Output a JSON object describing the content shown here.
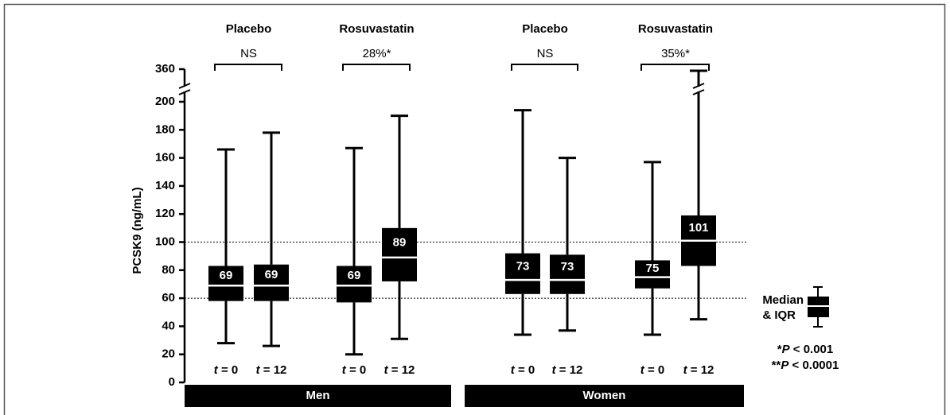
{
  "chart_data": {
    "type": "box",
    "y_label": "PCSK9 (ng/mL)",
    "ylim": [
      0,
      360
    ],
    "yticks": [
      0,
      20,
      40,
      60,
      80,
      100,
      120,
      140,
      160,
      180,
      200,
      360
    ],
    "axis_break": true,
    "hlines": [
      100,
      60
    ],
    "color": "#000000",
    "sexes": [
      "Men",
      "Women"
    ],
    "treatments": [
      {
        "label": "Placebo",
        "comparison": "NS"
      },
      {
        "label": "Rosuvastatin",
        "comparison": "28%*"
      },
      {
        "label": "Placebo",
        "comparison": "NS"
      },
      {
        "label": "Rosuvastatin",
        "comparison": "35%*"
      }
    ],
    "boxes": [
      {
        "label": "t = 0",
        "whisker_low": 28,
        "q1": 58,
        "median": 69,
        "q3": 83,
        "whisker_high": 166
      },
      {
        "label": "t = 12",
        "whisker_low": 26,
        "q1": 58,
        "median": 69,
        "q3": 84,
        "whisker_high": 178
      },
      {
        "label": "t = 0",
        "whisker_low": 20,
        "q1": 57,
        "median": 69,
        "q3": 83,
        "whisker_high": 167
      },
      {
        "label": "t = 12",
        "whisker_low": 31,
        "q1": 72,
        "median": 89,
        "q3": 110,
        "whisker_high": 190
      },
      {
        "label": "t = 0",
        "whisker_low": 34,
        "q1": 63,
        "median": 73,
        "q3": 92,
        "whisker_high": 194
      },
      {
        "label": "t = 12",
        "whisker_low": 37,
        "q1": 63,
        "median": 73,
        "q3": 91,
        "whisker_high": 160
      },
      {
        "label": "t = 0",
        "whisker_low": 34,
        "q1": 67,
        "median": 75,
        "q3": 87,
        "whisker_high": 157
      },
      {
        "label": "t = 12",
        "whisker_low": 45,
        "q1": 83,
        "median": 101,
        "q3": 119,
        "whisker_high": 350
      }
    ],
    "legend": {
      "line1": "Median",
      "line2": "& IQR"
    },
    "footnotes": [
      "*P < 0.001",
      "**P < 0.0001"
    ]
  }
}
